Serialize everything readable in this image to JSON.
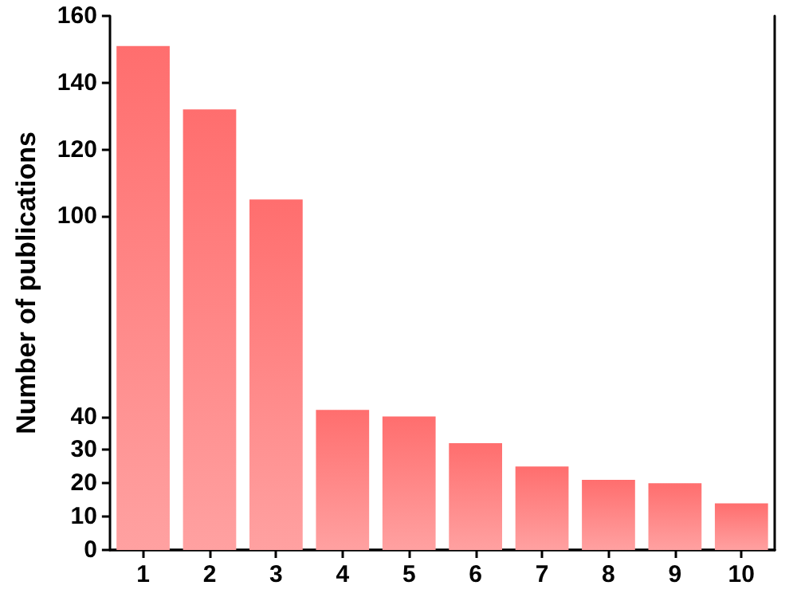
{
  "chart_data": {
    "type": "bar",
    "ylabel": "Number of publications",
    "categories": [
      "1",
      "2",
      "3",
      "4",
      "5",
      "6",
      "7",
      "8",
      "9",
      "10"
    ],
    "values": [
      151,
      132,
      105,
      42,
      40,
      32,
      25,
      21,
      20,
      14
    ],
    "color": "#ff6e6e",
    "ylim": [
      0,
      160
    ],
    "yticks": [
      0,
      10,
      20,
      30,
      40,
      100,
      120,
      140,
      160
    ],
    "grid": false
  }
}
